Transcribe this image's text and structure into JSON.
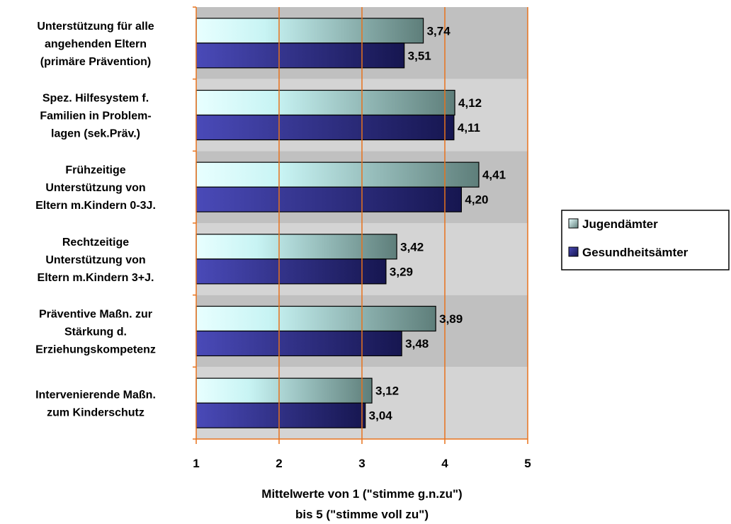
{
  "chart_data": {
    "type": "bar",
    "orientation": "horizontal",
    "categories": [
      [
        "Unterstützung für alle",
        "angehenden Eltern",
        "(primäre Prävention)"
      ],
      [
        "Spez. Hilfesystem f.",
        "Familien in Problem-",
        "lagen (sek.Präv.)"
      ],
      [
        "Frühzeitige",
        "Unterstützung von",
        "Eltern m.Kindern 0-3J."
      ],
      [
        "Rechtzeitige",
        "Unterstützung von",
        "Eltern m.Kindern 3+J."
      ],
      [
        "Präventive Maßn. zur",
        "Stärkung d.",
        "Erziehungskompetenz"
      ],
      [
        "Intervenierende Maßn.",
        "zum Kinderschutz"
      ]
    ],
    "series": [
      {
        "name": "Jugendämter",
        "values": [
          3.74,
          4.12,
          4.41,
          3.42,
          3.89,
          3.12
        ],
        "value_labels": [
          "3,74",
          "4,12",
          "4,41",
          "3,42",
          "3,89",
          "3,12"
        ],
        "color": "#7fa8a8"
      },
      {
        "name": "Gesundheitsämter",
        "values": [
          3.51,
          4.11,
          4.2,
          3.29,
          3.48,
          3.04
        ],
        "value_labels": [
          "3,51",
          "4,11",
          "4,20",
          "3,29",
          "3,48",
          "3,04"
        ],
        "color": "#2a2a7a"
      }
    ],
    "xlim": [
      1,
      5
    ],
    "xticks": [
      "1",
      "2",
      "3",
      "4",
      "5"
    ],
    "xlabel": [
      "Mittelwerte von 1 (\"stimme g.n.zu\")",
      "bis 5 (\"stimme voll zu\")"
    ],
    "ylabel": "",
    "grid": true,
    "legend_position": "right"
  }
}
